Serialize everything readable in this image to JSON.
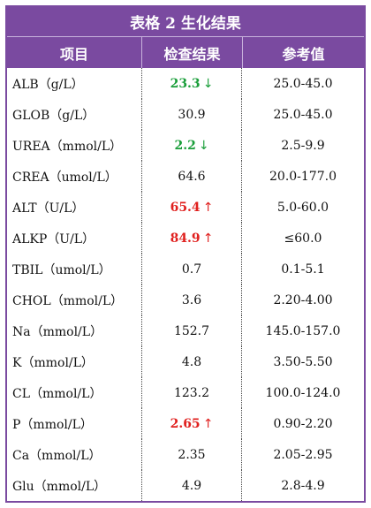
{
  "title": "表格 2  生化结果",
  "headers": {
    "item": "项目",
    "result": "检查结果",
    "reference": "参考值"
  },
  "rows": [
    {
      "name": "ALB（g/L）",
      "result": "23.3",
      "flag": "low",
      "arrow": "↓",
      "reference": "25.0-45.0"
    },
    {
      "name": "GLOB（g/L）",
      "result": "30.9",
      "flag": "",
      "arrow": "",
      "reference": "25.0-45.0"
    },
    {
      "name": "UREA（mmol/L）",
      "result": "2.2",
      "flag": "low",
      "arrow": "↓",
      "reference": "2.5-9.9"
    },
    {
      "name": "CREA（umol/L）",
      "result": "64.6",
      "flag": "",
      "arrow": "",
      "reference": "20.0-177.0"
    },
    {
      "name": "ALT（U/L）",
      "result": "65.4",
      "flag": "high",
      "arrow": "↑",
      "reference": "5.0-60.0"
    },
    {
      "name": "ALKP（U/L）",
      "result": "84.9",
      "flag": "high",
      "arrow": "↑",
      "reference": "≤60.0"
    },
    {
      "name": "TBIL（umol/L）",
      "result": "0.7",
      "flag": "",
      "arrow": "",
      "reference": "0.1-5.1"
    },
    {
      "name": "CHOL（mmol/L）",
      "result": "3.6",
      "flag": "",
      "arrow": "",
      "reference": "2.20-4.00"
    },
    {
      "name": "Na（mmol/L）",
      "result": "152.7",
      "flag": "",
      "arrow": "",
      "reference": "145.0-157.0"
    },
    {
      "name": "K（mmol/L）",
      "result": "4.8",
      "flag": "",
      "arrow": "",
      "reference": "3.50-5.50"
    },
    {
      "name": "CL（mmol/L）",
      "result": "123.2",
      "flag": "",
      "arrow": "",
      "reference": "100.0-124.0"
    },
    {
      "name": "P（mmol/L）",
      "result": "2.65",
      "flag": "high",
      "arrow": "↑",
      "reference": "0.90-2.20"
    },
    {
      "name": "Ca（mmol/L）",
      "result": "2.35",
      "flag": "",
      "arrow": "",
      "reference": "2.05-2.95"
    },
    {
      "name": "Glu（mmol/L）",
      "result": "4.9",
      "flag": "",
      "arrow": "",
      "reference": "2.8-4.9"
    }
  ],
  "colors": {
    "header_bg": "#7a4aa0",
    "low": "#1a9e3a",
    "high": "#e0201e"
  }
}
